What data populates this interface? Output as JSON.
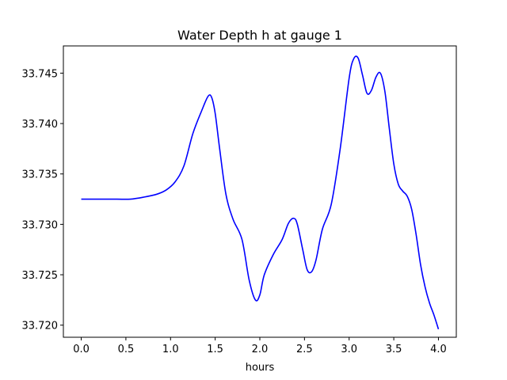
{
  "chart_data": {
    "type": "line",
    "title": "Water Depth h at gauge 1",
    "xlabel": "hours",
    "ylabel": "",
    "xlim": [
      -0.2,
      4.2
    ],
    "ylim": [
      33.7188,
      33.7477
    ],
    "x_ticks": [
      0.0,
      0.5,
      1.0,
      1.5,
      2.0,
      2.5,
      3.0,
      3.5,
      4.0
    ],
    "x_tick_labels": [
      "0.0",
      "0.5",
      "1.0",
      "1.5",
      "2.0",
      "2.5",
      "3.0",
      "3.5",
      "4.0"
    ],
    "y_ticks": [
      33.72,
      33.725,
      33.73,
      33.735,
      33.74,
      33.745
    ],
    "y_tick_labels": [
      "33.720",
      "33.725",
      "33.730",
      "33.735",
      "33.740",
      "33.745"
    ],
    "grid": false,
    "series": [
      {
        "color": "#0000ff",
        "x": [
          0.0,
          0.2,
          0.4,
          0.55,
          0.7,
          0.85,
          0.95,
          1.05,
          1.15,
          1.25,
          1.35,
          1.42,
          1.46,
          1.5,
          1.55,
          1.62,
          1.7,
          1.8,
          1.88,
          1.95,
          2.0,
          2.05,
          2.15,
          2.25,
          2.32,
          2.38,
          2.42,
          2.48,
          2.53,
          2.58,
          2.63,
          2.7,
          2.8,
          2.9,
          3.0,
          3.05,
          3.1,
          3.15,
          3.2,
          3.25,
          3.3,
          3.35,
          3.4,
          3.45,
          3.5,
          3.55,
          3.6,
          3.65,
          3.7,
          3.75,
          3.8,
          3.85,
          3.9,
          3.95,
          4.0
        ],
        "y": [
          33.7325,
          33.7325,
          33.7325,
          33.7325,
          33.7327,
          33.733,
          33.7334,
          33.7342,
          33.7358,
          33.739,
          33.7413,
          33.7427,
          33.7426,
          33.741,
          33.7375,
          33.733,
          33.7305,
          33.7285,
          33.7245,
          33.7225,
          33.723,
          33.725,
          33.727,
          33.7285,
          33.7301,
          33.7306,
          33.73,
          33.7275,
          33.7255,
          33.7253,
          33.7265,
          33.7295,
          33.732,
          33.7375,
          33.7445,
          33.7464,
          33.7465,
          33.7448,
          33.743,
          33.7433,
          33.7446,
          33.745,
          33.7432,
          33.7395,
          33.736,
          33.734,
          33.7333,
          33.7328,
          33.7315,
          33.729,
          33.726,
          33.7238,
          33.7222,
          33.721,
          33.7196
        ]
      }
    ]
  }
}
